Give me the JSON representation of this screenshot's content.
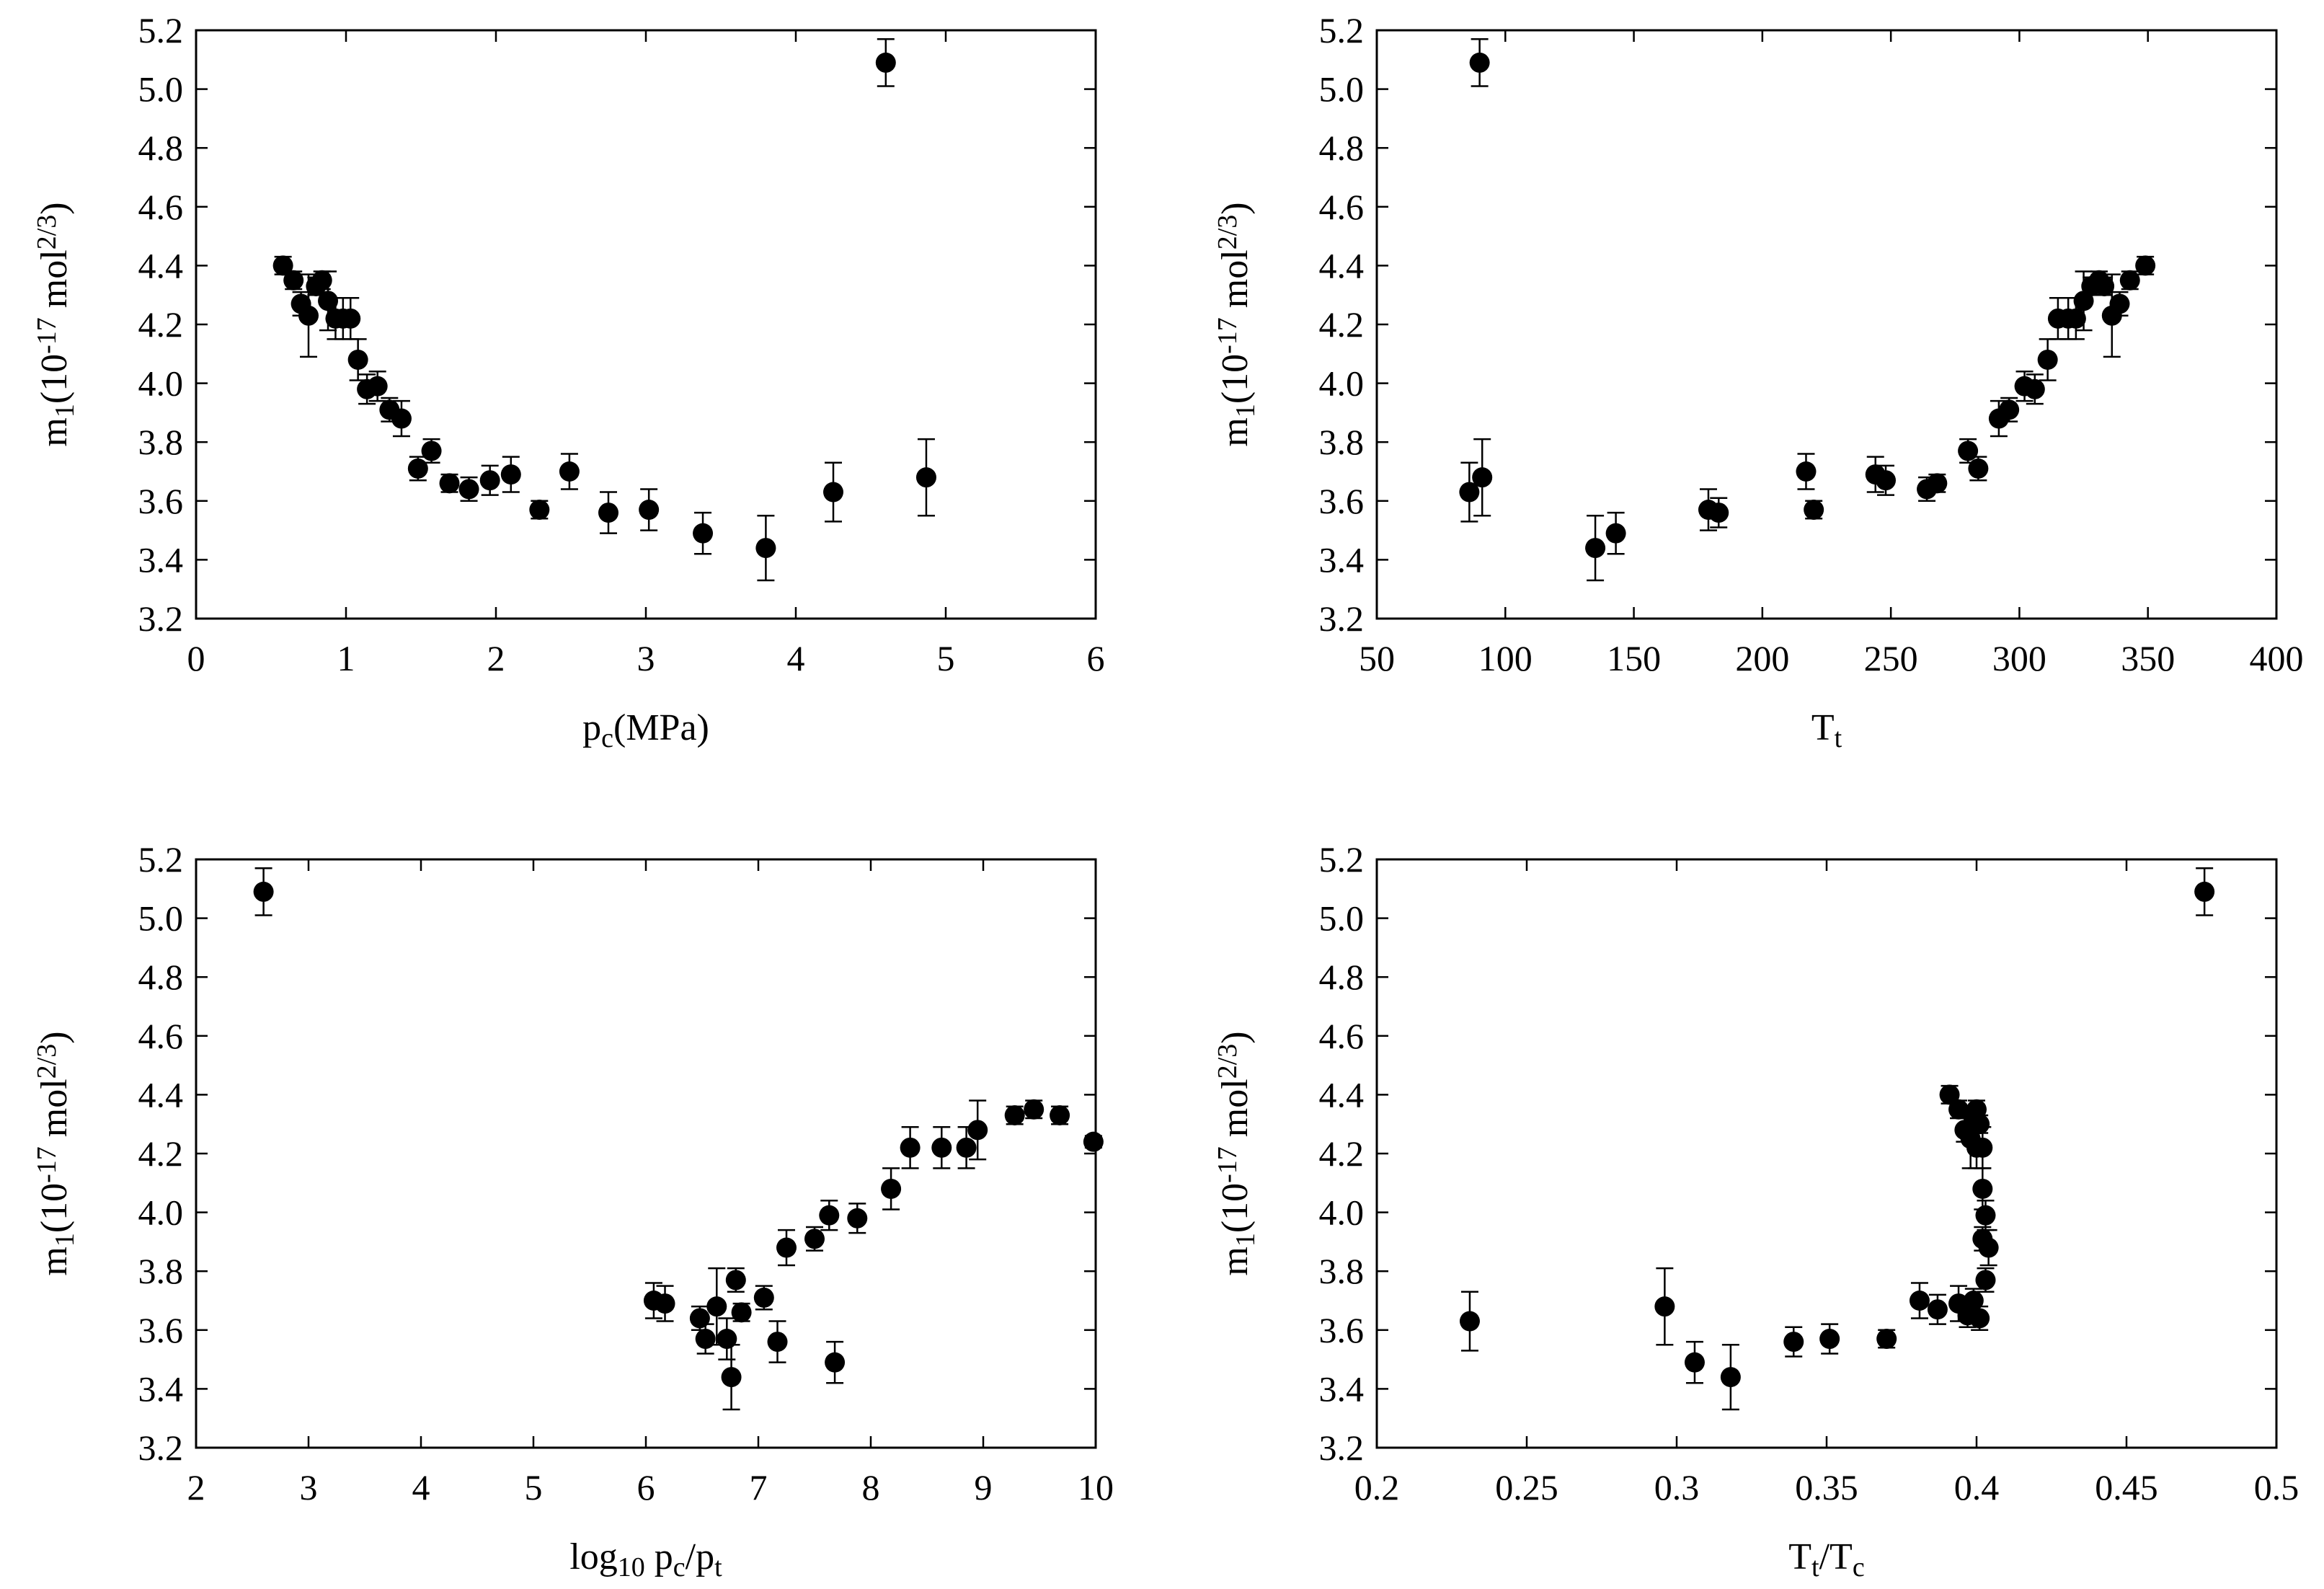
{
  "chart_data": [
    {
      "type": "scatter",
      "id": "pc",
      "xlabel": {
        "main": "p",
        "sub": "c",
        "tail": "(MPa)"
      },
      "ylabel": {
        "pre": "m",
        "sub": "1",
        "mid": "(10",
        "sup1": "-17",
        "mid2": " mol",
        "sup2": "2/3",
        "post": ")"
      },
      "xlim": [
        0,
        6
      ],
      "ylim": [
        3.2,
        5.2
      ],
      "xticks": [
        0,
        1,
        2,
        3,
        4,
        5,
        6
      ],
      "xtick_labels": [
        "0",
        "1",
        "2",
        "3",
        "4",
        "5",
        "6"
      ],
      "yticks": [
        3.2,
        3.4,
        3.6,
        3.8,
        4.0,
        4.2,
        4.4,
        4.6,
        4.8,
        5.0,
        5.2
      ],
      "ytick_labels": [
        "3.2",
        "3.4",
        "3.6",
        "3.8",
        "4.0",
        "4.2",
        "4.4",
        "4.6",
        "4.8",
        "5.0",
        "5.2"
      ],
      "points": [
        {
          "x": 0.58,
          "y": 4.4,
          "err": 0.03
        },
        {
          "x": 0.65,
          "y": 4.35,
          "err": 0.03
        },
        {
          "x": 0.7,
          "y": 4.27,
          "err": 0.04
        },
        {
          "x": 0.75,
          "y": 4.23,
          "err": 0.14
        },
        {
          "x": 0.8,
          "y": 4.33,
          "err": 0.03
        },
        {
          "x": 0.84,
          "y": 4.35,
          "err": 0.03
        },
        {
          "x": 0.88,
          "y": 4.28,
          "err": 0.1
        },
        {
          "x": 0.93,
          "y": 4.22,
          "err": 0.07
        },
        {
          "x": 0.98,
          "y": 4.22,
          "err": 0.07
        },
        {
          "x": 1.03,
          "y": 4.22,
          "err": 0.07
        },
        {
          "x": 1.08,
          "y": 4.08,
          "err": 0.07
        },
        {
          "x": 1.14,
          "y": 3.98,
          "err": 0.05
        },
        {
          "x": 1.21,
          "y": 3.99,
          "err": 0.05
        },
        {
          "x": 1.29,
          "y": 3.91,
          "err": 0.04
        },
        {
          "x": 1.37,
          "y": 3.88,
          "err": 0.06
        },
        {
          "x": 1.48,
          "y": 3.71,
          "err": 0.04
        },
        {
          "x": 1.57,
          "y": 3.77,
          "err": 0.04
        },
        {
          "x": 1.69,
          "y": 3.66,
          "err": 0.03
        },
        {
          "x": 1.82,
          "y": 3.64,
          "err": 0.04
        },
        {
          "x": 1.96,
          "y": 3.67,
          "err": 0.05
        },
        {
          "x": 2.1,
          "y": 3.69,
          "err": 0.06
        },
        {
          "x": 2.29,
          "y": 3.57,
          "err": 0.03
        },
        {
          "x": 2.49,
          "y": 3.7,
          "err": 0.06
        },
        {
          "x": 2.75,
          "y": 3.56,
          "err": 0.07
        },
        {
          "x": 3.02,
          "y": 3.57,
          "err": 0.07
        },
        {
          "x": 3.38,
          "y": 3.49,
          "err": 0.07
        },
        {
          "x": 3.8,
          "y": 3.44,
          "err": 0.11
        },
        {
          "x": 4.25,
          "y": 3.63,
          "err": 0.1
        },
        {
          "x": 4.6,
          "y": 5.09,
          "err": 0.08
        },
        {
          "x": 4.87,
          "y": 3.68,
          "err": 0.13
        }
      ]
    },
    {
      "type": "scatter",
      "id": "tt",
      "xlabel": {
        "main": "T",
        "sub": "t",
        "tail": ""
      },
      "ylabel": {
        "pre": "m",
        "sub": "1",
        "mid": "(10",
        "sup1": "-17",
        "mid2": " mol",
        "sup2": "2/3",
        "post": ")"
      },
      "xlim": [
        50,
        400
      ],
      "ylim": [
        3.2,
        5.2
      ],
      "xticks": [
        50,
        100,
        150,
        200,
        250,
        300,
        350,
        400
      ],
      "xtick_labels": [
        "50",
        "100",
        "150",
        "200",
        "250",
        "300",
        "350",
        "400"
      ],
      "yticks": [
        3.2,
        3.4,
        3.6,
        3.8,
        4.0,
        4.2,
        4.4,
        4.6,
        4.8,
        5.0,
        5.2
      ],
      "ytick_labels": [
        "3.2",
        "3.4",
        "3.6",
        "3.8",
        "4.0",
        "4.2",
        "4.4",
        "4.6",
        "4.8",
        "5.0",
        "5.2"
      ],
      "points": [
        {
          "x": 86,
          "y": 3.63,
          "err": 0.1
        },
        {
          "x": 90,
          "y": 5.09,
          "err": 0.08
        },
        {
          "x": 91,
          "y": 3.68,
          "err": 0.13
        },
        {
          "x": 135,
          "y": 3.44,
          "err": 0.11
        },
        {
          "x": 143,
          "y": 3.49,
          "err": 0.07
        },
        {
          "x": 179,
          "y": 3.57,
          "err": 0.07
        },
        {
          "x": 183,
          "y": 3.56,
          "err": 0.05
        },
        {
          "x": 217,
          "y": 3.7,
          "err": 0.06
        },
        {
          "x": 220,
          "y": 3.57,
          "err": 0.03
        },
        {
          "x": 244,
          "y": 3.69,
          "err": 0.06
        },
        {
          "x": 248,
          "y": 3.67,
          "err": 0.05
        },
        {
          "x": 264,
          "y": 3.64,
          "err": 0.04
        },
        {
          "x": 268,
          "y": 3.66,
          "err": 0.03
        },
        {
          "x": 280,
          "y": 3.77,
          "err": 0.04
        },
        {
          "x": 284,
          "y": 3.71,
          "err": 0.04
        },
        {
          "x": 292,
          "y": 3.88,
          "err": 0.06
        },
        {
          "x": 296,
          "y": 3.91,
          "err": 0.04
        },
        {
          "x": 302,
          "y": 3.99,
          "err": 0.05
        },
        {
          "x": 306,
          "y": 3.98,
          "err": 0.05
        },
        {
          "x": 311,
          "y": 4.08,
          "err": 0.07
        },
        {
          "x": 315,
          "y": 4.22,
          "err": 0.07
        },
        {
          "x": 319,
          "y": 4.22,
          "err": 0.07
        },
        {
          "x": 322,
          "y": 4.22,
          "err": 0.07
        },
        {
          "x": 325,
          "y": 4.28,
          "err": 0.1
        },
        {
          "x": 328,
          "y": 4.33,
          "err": 0.03
        },
        {
          "x": 331,
          "y": 4.35,
          "err": 0.03
        },
        {
          "x": 333,
          "y": 4.33,
          "err": 0.03
        },
        {
          "x": 336,
          "y": 4.23,
          "err": 0.14
        },
        {
          "x": 339,
          "y": 4.27,
          "err": 0.04
        },
        {
          "x": 343,
          "y": 4.35,
          "err": 0.03
        },
        {
          "x": 349,
          "y": 4.4,
          "err": 0.03
        }
      ]
    },
    {
      "type": "scatter",
      "id": "logp",
      "xlabel": {
        "main": "log",
        "sub": "10",
        "tail": " p",
        "sub2": "c",
        "tail2": "/p",
        "sub3": "t"
      },
      "ylabel": {
        "pre": "m",
        "sub": "1",
        "mid": "(10",
        "sup1": "-17",
        "mid2": " mol",
        "sup2": "2/3",
        "post": ")"
      },
      "xlim": [
        2,
        10
      ],
      "ylim": [
        3.2,
        5.2
      ],
      "xticks": [
        2,
        3,
        4,
        5,
        6,
        7,
        8,
        9,
        10
      ],
      "xtick_labels": [
        "2",
        "3",
        "4",
        "5",
        "6",
        "7",
        "8",
        "9",
        "10"
      ],
      "yticks": [
        3.2,
        3.4,
        3.6,
        3.8,
        4.0,
        4.2,
        4.4,
        4.6,
        4.8,
        5.0,
        5.2
      ],
      "ytick_labels": [
        "3.2",
        "3.4",
        "3.6",
        "3.8",
        "4.0",
        "4.2",
        "4.4",
        "4.6",
        "4.8",
        "5.0",
        "5.2"
      ],
      "points": [
        {
          "x": 2.6,
          "y": 5.09,
          "err": 0.08
        },
        {
          "x": 6.07,
          "y": 3.7,
          "err": 0.06
        },
        {
          "x": 6.17,
          "y": 3.69,
          "err": 0.06
        },
        {
          "x": 6.48,
          "y": 3.64,
          "err": 0.04
        },
        {
          "x": 6.53,
          "y": 3.57,
          "err": 0.05
        },
        {
          "x": 6.63,
          "y": 3.68,
          "err": 0.13
        },
        {
          "x": 6.72,
          "y": 3.57,
          "err": 0.07
        },
        {
          "x": 6.76,
          "y": 3.44,
          "err": 0.11
        },
        {
          "x": 6.8,
          "y": 3.77,
          "err": 0.04
        },
        {
          "x": 6.85,
          "y": 3.66,
          "err": 0.03
        },
        {
          "x": 7.05,
          "y": 3.71,
          "err": 0.04
        },
        {
          "x": 7.17,
          "y": 3.56,
          "err": 0.07
        },
        {
          "x": 7.25,
          "y": 3.88,
          "err": 0.06
        },
        {
          "x": 7.5,
          "y": 3.91,
          "err": 0.04
        },
        {
          "x": 7.63,
          "y": 3.99,
          "err": 0.05
        },
        {
          "x": 7.68,
          "y": 3.49,
          "err": 0.07
        },
        {
          "x": 7.88,
          "y": 3.98,
          "err": 0.05
        },
        {
          "x": 8.18,
          "y": 4.08,
          "err": 0.07
        },
        {
          "x": 8.35,
          "y": 4.22,
          "err": 0.07
        },
        {
          "x": 8.63,
          "y": 4.22,
          "err": 0.07
        },
        {
          "x": 8.85,
          "y": 4.22,
          "err": 0.07
        },
        {
          "x": 8.95,
          "y": 4.28,
          "err": 0.1
        },
        {
          "x": 9.28,
          "y": 4.33,
          "err": 0.03
        },
        {
          "x": 9.45,
          "y": 4.35,
          "err": 0.03
        },
        {
          "x": 9.68,
          "y": 4.33,
          "err": 0.03
        },
        {
          "x": 9.98,
          "y": 4.24,
          "err": 0.02
        }
      ]
    },
    {
      "type": "scatter",
      "id": "tr",
      "xlabel": {
        "main": "T",
        "sub": "t",
        "tail": "/T",
        "sub2": "c"
      },
      "ylabel": {
        "pre": "m",
        "sub": "1",
        "mid": "(10",
        "sup1": "-17",
        "mid2": " mol",
        "sup2": "2/3",
        "post": ")"
      },
      "xlim": [
        0.2,
        0.5
      ],
      "ylim": [
        3.2,
        5.2
      ],
      "xticks": [
        0.2,
        0.25,
        0.3,
        0.35,
        0.4,
        0.45,
        0.5
      ],
      "xtick_labels": [
        "0.2",
        "0.25",
        "0.3",
        "0.35",
        "0.4",
        "0.45",
        "0.5"
      ],
      "yticks": [
        3.2,
        3.4,
        3.6,
        3.8,
        4.0,
        4.2,
        4.4,
        4.6,
        4.8,
        5.0,
        5.2
      ],
      "ytick_labels": [
        "3.2",
        "3.4",
        "3.6",
        "3.8",
        "4.0",
        "4.2",
        "4.4",
        "4.6",
        "4.8",
        "5.0",
        "5.2"
      ],
      "points": [
        {
          "x": 0.231,
          "y": 3.63,
          "err": 0.1
        },
        {
          "x": 0.296,
          "y": 3.68,
          "err": 0.13
        },
        {
          "x": 0.306,
          "y": 3.49,
          "err": 0.07
        },
        {
          "x": 0.318,
          "y": 3.44,
          "err": 0.11
        },
        {
          "x": 0.339,
          "y": 3.56,
          "err": 0.05
        },
        {
          "x": 0.351,
          "y": 3.57,
          "err": 0.05
        },
        {
          "x": 0.37,
          "y": 3.57,
          "err": 0.03
        },
        {
          "x": 0.381,
          "y": 3.7,
          "err": 0.06
        },
        {
          "x": 0.387,
          "y": 3.67,
          "err": 0.05
        },
        {
          "x": 0.391,
          "y": 4.4,
          "err": 0.03
        },
        {
          "x": 0.394,
          "y": 4.35,
          "err": 0.03
        },
        {
          "x": 0.394,
          "y": 3.69,
          "err": 0.06
        },
        {
          "x": 0.396,
          "y": 4.28,
          "err": 0.04
        },
        {
          "x": 0.397,
          "y": 3.65,
          "err": 0.04
        },
        {
          "x": 0.398,
          "y": 4.25,
          "err": 0.1
        },
        {
          "x": 0.399,
          "y": 4.33,
          "err": 0.03
        },
        {
          "x": 0.399,
          "y": 3.7,
          "err": 0.04
        },
        {
          "x": 0.4,
          "y": 4.35,
          "err": 0.03
        },
        {
          "x": 0.4,
          "y": 4.22,
          "err": 0.07
        },
        {
          "x": 0.401,
          "y": 4.3,
          "err": 0.03
        },
        {
          "x": 0.401,
          "y": 3.64,
          "err": 0.04
        },
        {
          "x": 0.402,
          "y": 4.22,
          "err": 0.07
        },
        {
          "x": 0.402,
          "y": 4.08,
          "err": 0.07
        },
        {
          "x": 0.403,
          "y": 3.99,
          "err": 0.05
        },
        {
          "x": 0.403,
          "y": 3.77,
          "err": 0.04
        },
        {
          "x": 0.402,
          "y": 3.91,
          "err": 0.04
        },
        {
          "x": 0.404,
          "y": 3.88,
          "err": 0.06
        },
        {
          "x": 0.476,
          "y": 5.09,
          "err": 0.08
        }
      ]
    }
  ]
}
